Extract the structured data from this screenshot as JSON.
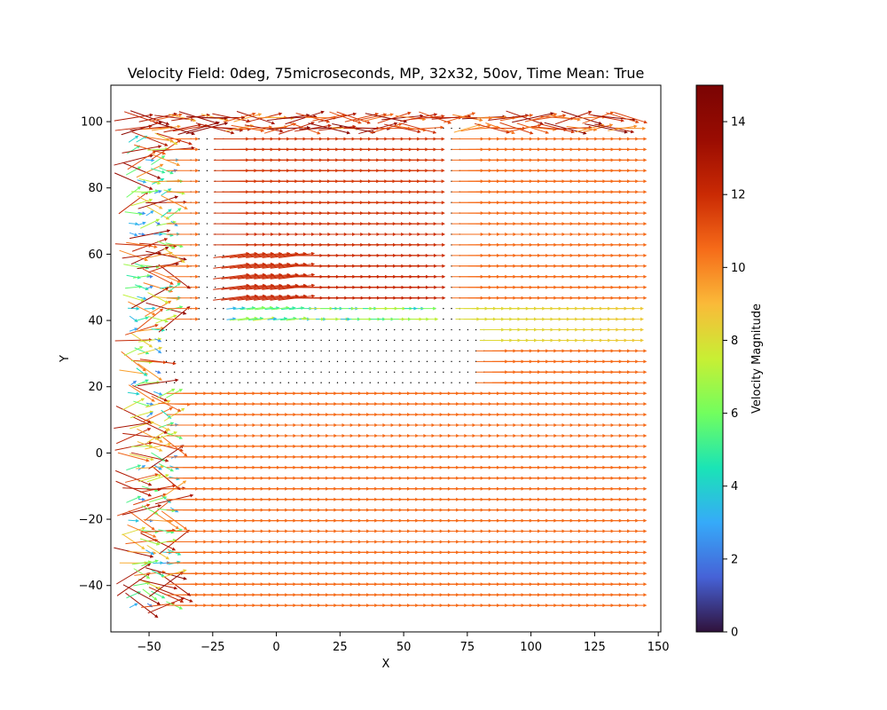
{
  "chart_data": {
    "type": "quiver",
    "title": "Velocity Field: 0deg, 75microseconds, MP, 32x32, 50ov, Time Mean: True",
    "xlabel": "X",
    "ylabel": "Y",
    "xlim": [
      -65,
      151
    ],
    "ylim": [
      -54,
      111
    ],
    "xticks": [
      -50,
      -25,
      0,
      25,
      50,
      75,
      100,
      125,
      150
    ],
    "yticks": [
      -40,
      -20,
      0,
      20,
      40,
      60,
      80,
      100
    ],
    "grid": false,
    "grid_x_range": [
      -56,
      141
    ],
    "grid_y_range": [
      -46,
      103
    ],
    "grid_spacing": 3.2,
    "colorbar": {
      "label": "Velocity Magnitude",
      "range": [
        0,
        15
      ],
      "ticks": [
        0,
        2,
        4,
        6,
        8,
        10,
        12,
        14
      ],
      "colormap": "turbo"
    },
    "obstacles": [
      {
        "name": "horizontal-plate",
        "x": [
          -45,
          82
        ],
        "y": [
          20,
          40
        ]
      },
      {
        "name": "left-vertical-strut",
        "x": [
          -35,
          -18
        ],
        "y": [
          40,
          97
        ]
      },
      {
        "name": "right-vertical-strut",
        "x": [
          60,
          73
        ],
        "y": [
          40,
          100
        ]
      }
    ],
    "field_summary": {
      "freestream_magnitude": 10.5,
      "freestream_direction_deg": 0,
      "accelerated_region_magnitude": 12,
      "left_inlet_region_magnitude": [
        2,
        14
      ],
      "wake_region_magnitude": [
        7,
        9
      ]
    }
  }
}
